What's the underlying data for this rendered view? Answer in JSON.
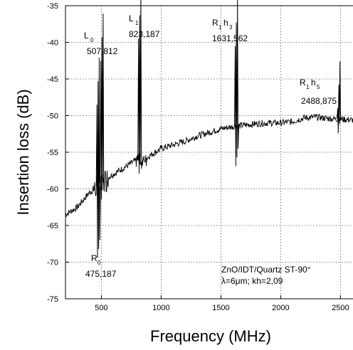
{
  "chart_data": {
    "type": "line",
    "xlabel": "Frequency (MHz)",
    "ylabel": "Insertion loss (dB)",
    "xlim": [
      200,
      2700
    ],
    "ylim": [
      -75,
      -35
    ],
    "grid": true,
    "x_ticks": [
      500,
      1000,
      1500,
      2000,
      2500
    ],
    "y_ticks": [
      -35,
      -40,
      -45,
      -50,
      -55,
      -60,
      -65,
      -70,
      -75
    ],
    "baseline": {
      "x": [
        200,
        250,
        300,
        350,
        400,
        450,
        500,
        550,
        600,
        650,
        700,
        750,
        800,
        850,
        900,
        950,
        1000,
        1100,
        1200,
        1300,
        1400,
        1500,
        1600,
        1700,
        1800,
        1900,
        2000,
        2100,
        2200,
        2300,
        2400,
        2500,
        2600,
        2700
      ],
      "y": [
        -63.5,
        -63,
        -62.5,
        -61.5,
        -60.5,
        -60,
        -59.3,
        -58.5,
        -58,
        -57.5,
        -57,
        -56.5,
        -56,
        -56.2,
        -55.5,
        -55,
        -54.5,
        -54,
        -53.5,
        -52.8,
        -52.3,
        -51.8,
        -51.5,
        -51.3,
        -51.1,
        -51,
        -51,
        -50.8,
        -50.3,
        -50.2,
        -50.4,
        -50.5,
        -50.6,
        -50.9
      ]
    },
    "peaks": [
      {
        "x": 475.187,
        "top": -48.5,
        "bottom": -70,
        "label": "R",
        "sub": "0",
        "value": "475,187"
      },
      {
        "x": 507.812,
        "top": -42.5,
        "bottom": -62,
        "label": "L",
        "sub": "0",
        "value": "507,812"
      },
      {
        "x": 823.187,
        "top": -39.5,
        "bottom": -58.5,
        "label": "L",
        "sub": "1",
        "value": "823,187"
      },
      {
        "x": 1631.562,
        "top": -40.5,
        "bottom": -57.5,
        "label": "R",
        "sub": "1",
        "label2": "h",
        "sub2": "3",
        "value": "1631,562"
      },
      {
        "x": 2488.875,
        "top": -49,
        "bottom": -53,
        "label": "R",
        "sub": "1",
        "label2": "h",
        "sub2": "5",
        "value": "2488,875"
      }
    ],
    "annotation_lines": [
      "ZnO/IDT/Quartz ST-90°",
      "λ=6μm; kh=2,09"
    ]
  }
}
